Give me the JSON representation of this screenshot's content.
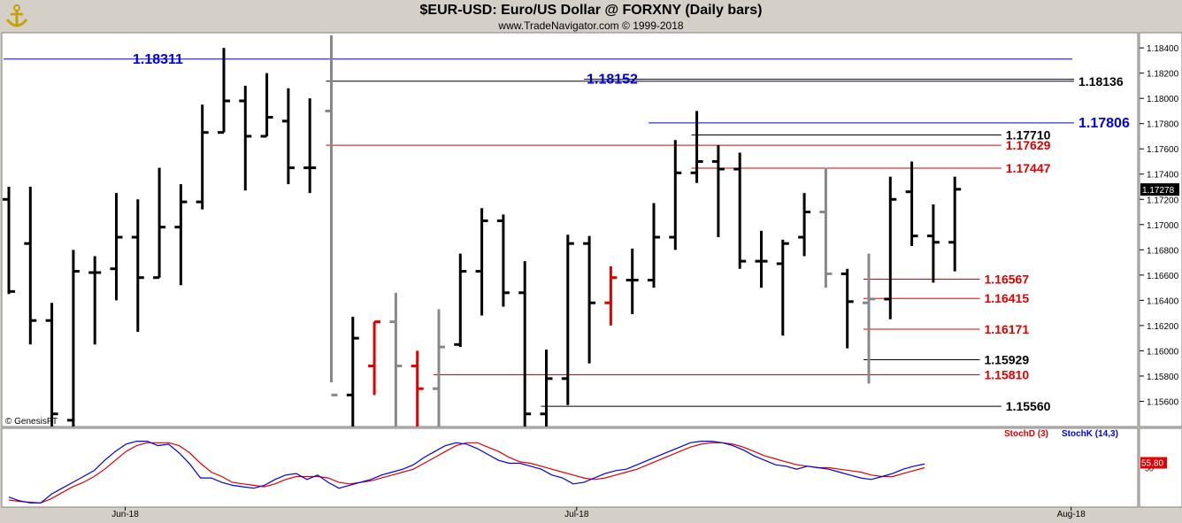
{
  "header": {
    "title": "$EUR-USD:  Euro/US Dollar @ FORXNY  (Daily bars)",
    "subtitle": "www.TradeNavigator.com © 1999-2018"
  },
  "copyright": "© GenesisFT",
  "colors": {
    "background": "#ffffff",
    "frame": "#d4d0c8",
    "bar_up": "#000000",
    "bar_down": "#e00000",
    "bar_neutral": "#888888",
    "level_blue": "#0000e0",
    "level_red": "#e00000",
    "level_black": "#000000",
    "stoch_d": "#e00000",
    "stoch_k": "#0000e0"
  },
  "chart_data": {
    "type": "ohlc-bar",
    "price_axis": {
      "ylim": [
        1.154,
        1.1852
      ],
      "ticks": [
        "1.18400",
        "1.18200",
        "1.18000",
        "1.17800",
        "1.17600",
        "1.17400",
        "1.17200",
        "1.17000",
        "1.16800",
        "1.16600",
        "1.16400",
        "1.16200",
        "1.16000",
        "1.15800",
        "1.15600"
      ],
      "last_price_label": "1.17278",
      "last_price": 1.17278
    },
    "x_axis": {
      "labels": [
        {
          "text": "Jun-18",
          "bar": 5
        },
        {
          "text": "Jul-18",
          "bar": 26
        },
        {
          "text": "Aug-18",
          "bar": 49
        }
      ],
      "total_slots": 52
    },
    "bars": [
      {
        "h": 1.173,
        "l": 1.1645,
        "o": 1.172,
        "c": 1.1647,
        "col": "black"
      },
      {
        "h": 1.173,
        "l": 1.1605,
        "o": 1.1685,
        "c": 1.1624,
        "col": "black"
      },
      {
        "h": 1.1638,
        "l": 1.154,
        "o": 1.1624,
        "c": 1.155,
        "col": "black"
      },
      {
        "h": 1.168,
        "l": 1.153,
        "o": 1.1545,
        "c": 1.1663,
        "col": "black"
      },
      {
        "h": 1.1675,
        "l": 1.1605,
        "o": 1.1662,
        "c": 1.1662,
        "col": "black"
      },
      {
        "h": 1.1725,
        "l": 1.164,
        "o": 1.1665,
        "c": 1.169,
        "col": "black"
      },
      {
        "h": 1.172,
        "l": 1.1615,
        "o": 1.169,
        "c": 1.1658,
        "col": "black"
      },
      {
        "h": 1.1745,
        "l": 1.1658,
        "o": 1.1658,
        "c": 1.1698,
        "col": "black"
      },
      {
        "h": 1.1732,
        "l": 1.1652,
        "o": 1.1698,
        "c": 1.1718,
        "col": "black"
      },
      {
        "h": 1.1795,
        "l": 1.1712,
        "o": 1.1718,
        "c": 1.1773,
        "col": "black"
      },
      {
        "h": 1.184,
        "l": 1.1773,
        "o": 1.1773,
        "c": 1.1798,
        "col": "black"
      },
      {
        "h": 1.181,
        "l": 1.1727,
        "o": 1.1798,
        "c": 1.177,
        "col": "black"
      },
      {
        "h": 1.182,
        "l": 1.177,
        "o": 1.177,
        "c": 1.1785,
        "col": "black"
      },
      {
        "h": 1.1808,
        "l": 1.1732,
        "o": 1.1782,
        "c": 1.1745,
        "col": "black"
      },
      {
        "h": 1.18,
        "l": 1.1725,
        "o": 1.1745,
        "c": 1.1745,
        "col": "black"
      },
      {
        "h": 1.185,
        "l": 1.1575,
        "o": 1.179,
        "c": 1.1565,
        "col": "gray"
      },
      {
        "h": 1.1627,
        "l": 1.154,
        "o": 1.1565,
        "c": 1.161,
        "col": "black"
      },
      {
        "h": 1.1623,
        "l": 1.1565,
        "o": 1.1588,
        "c": 1.1623,
        "col": "red"
      },
      {
        "h": 1.1646,
        "l": 1.154,
        "o": 1.1623,
        "c": 1.1588,
        "col": "gray"
      },
      {
        "h": 1.16,
        "l": 1.154,
        "o": 1.1588,
        "c": 1.157,
        "col": "red"
      },
      {
        "h": 1.1633,
        "l": 1.154,
        "o": 1.157,
        "c": 1.1603,
        "col": "gray"
      },
      {
        "h": 1.1677,
        "l": 1.1603,
        "o": 1.1605,
        "c": 1.1663,
        "col": "black"
      },
      {
        "h": 1.1713,
        "l": 1.1628,
        "o": 1.1663,
        "c": 1.1703,
        "col": "black"
      },
      {
        "h": 1.1708,
        "l": 1.1635,
        "o": 1.1703,
        "c": 1.1646,
        "col": "black"
      },
      {
        "h": 1.1671,
        "l": 1.154,
        "o": 1.1646,
        "c": 1.155,
        "col": "black"
      },
      {
        "h": 1.1601,
        "l": 1.154,
        "o": 1.155,
        "c": 1.1578,
        "col": "black"
      },
      {
        "h": 1.1692,
        "l": 1.1557,
        "o": 1.1578,
        "c": 1.1685,
        "col": "black"
      },
      {
        "h": 1.1691,
        "l": 1.159,
        "o": 1.1685,
        "c": 1.1638,
        "col": "black"
      },
      {
        "h": 1.1667,
        "l": 1.162,
        "o": 1.1638,
        "c": 1.1658,
        "col": "red"
      },
      {
        "h": 1.1681,
        "l": 1.1629,
        "o": 1.1656,
        "c": 1.1656,
        "col": "black"
      },
      {
        "h": 1.1717,
        "l": 1.165,
        "o": 1.1656,
        "c": 1.169,
        "col": "black"
      },
      {
        "h": 1.1767,
        "l": 1.168,
        "o": 1.169,
        "c": 1.1741,
        "col": "black"
      },
      {
        "h": 1.179,
        "l": 1.1733,
        "o": 1.1741,
        "c": 1.175,
        "col": "black"
      },
      {
        "h": 1.1763,
        "l": 1.169,
        "o": 1.175,
        "c": 1.1744,
        "col": "black"
      },
      {
        "h": 1.1757,
        "l": 1.1665,
        "o": 1.1744,
        "c": 1.1671,
        "col": "black"
      },
      {
        "h": 1.1695,
        "l": 1.165,
        "o": 1.1671,
        "c": 1.1671,
        "col": "black"
      },
      {
        "h": 1.1688,
        "l": 1.1612,
        "o": 1.1669,
        "c": 1.1685,
        "col": "black"
      },
      {
        "h": 1.1725,
        "l": 1.1675,
        "o": 1.169,
        "c": 1.171,
        "col": "black"
      },
      {
        "h": 1.1745,
        "l": 1.165,
        "o": 1.171,
        "c": 1.1661,
        "col": "gray"
      },
      {
        "h": 1.1665,
        "l": 1.1602,
        "o": 1.1661,
        "c": 1.1639,
        "col": "black"
      },
      {
        "h": 1.1677,
        "l": 1.1574,
        "o": 1.1638,
        "c": 1.1641,
        "col": "gray"
      },
      {
        "h": 1.1738,
        "l": 1.1625,
        "o": 1.1641,
        "c": 1.172,
        "col": "black"
      },
      {
        "h": 1.175,
        "l": 1.1683,
        "o": 1.1726,
        "c": 1.1691,
        "col": "black"
      },
      {
        "h": 1.1716,
        "l": 1.1654,
        "o": 1.1691,
        "c": 1.1686,
        "col": "black"
      },
      {
        "h": 1.1738,
        "l": 1.1663,
        "o": 1.1686,
        "c": 1.1728,
        "col": "black"
      }
    ],
    "levels": [
      {
        "price": 1.18311,
        "label": "1.18311",
        "color": "blue",
        "from": 0,
        "to": 51,
        "label_side": "left"
      },
      {
        "price": 1.18152,
        "label": "1.18152",
        "color": "blue",
        "from": 27,
        "to": 51,
        "label_side": "mid"
      },
      {
        "price": 1.18136,
        "label": "1.18136",
        "color": "black",
        "from": 15,
        "to": 51,
        "label_side": "right"
      },
      {
        "price": 1.17806,
        "label": "1.17806",
        "color": "blue",
        "from": 30,
        "to": 51,
        "label_side": "right"
      },
      {
        "price": 1.1771,
        "label": "1.17710",
        "color": "black",
        "from": 32,
        "to": 46,
        "label_side": "right"
      },
      {
        "price": 1.17629,
        "label": "1.17629",
        "color": "red",
        "from": 15,
        "to": 46,
        "label_side": "right"
      },
      {
        "price": 1.17447,
        "label": "1.17447",
        "color": "red",
        "from": 32,
        "to": 46,
        "label_side": "right"
      },
      {
        "price": 1.16567,
        "label": "1.16567",
        "color": "red",
        "from": 40,
        "to": 45,
        "label_side": "right"
      },
      {
        "price": 1.16415,
        "label": "1.16415",
        "color": "red",
        "from": 40,
        "to": 45,
        "label_side": "right"
      },
      {
        "price": 1.16171,
        "label": "1.16171",
        "color": "red",
        "from": 40,
        "to": 45,
        "label_side": "right"
      },
      {
        "price": 1.15929,
        "label": "1.15929",
        "color": "black",
        "from": 40,
        "to": 45,
        "label_side": "right"
      },
      {
        "price": 1.1581,
        "label": "1.15810",
        "color": "red",
        "from": 20,
        "to": 45,
        "label_side": "right"
      },
      {
        "price": 1.1556,
        "label": "1.15560",
        "color": "black",
        "from": 25,
        "to": 46,
        "label_side": "right"
      }
    ],
    "stochastic": {
      "ylim": [
        0,
        100
      ],
      "tick_label": "50",
      "last_value_label": "55.80",
      "legend": [
        {
          "name": "StochD (3)",
          "color": "red"
        },
        {
          "name": "StochK (14,3)",
          "color": "blue"
        }
      ],
      "k": [
        10,
        5,
        2,
        2,
        14,
        22,
        30,
        38,
        46,
        60,
        72,
        82,
        86,
        86,
        80,
        82,
        70,
        55,
        36,
        36,
        30,
        26,
        24,
        22,
        26,
        34,
        40,
        42,
        34,
        40,
        30,
        22,
        26,
        30,
        34,
        40,
        44,
        48,
        54,
        64,
        72,
        80,
        84,
        82,
        76,
        68,
        60,
        56,
        56,
        52,
        48,
        40,
        36,
        28,
        30,
        36,
        42,
        46,
        48,
        54,
        60,
        66,
        72,
        78,
        84,
        86,
        86,
        84,
        80,
        74,
        66,
        60,
        54,
        52,
        48,
        52,
        50,
        48,
        44,
        40,
        36,
        34,
        38,
        42,
        48,
        52,
        55
      ],
      "d": [
        6,
        4,
        3,
        2,
        8,
        16,
        24,
        30,
        38,
        48,
        60,
        72,
        80,
        84,
        84,
        84,
        80,
        70,
        56,
        44,
        38,
        30,
        28,
        26,
        24,
        28,
        34,
        38,
        38,
        38,
        36,
        30,
        28,
        30,
        32,
        36,
        40,
        44,
        48,
        56,
        64,
        72,
        80,
        84,
        84,
        78,
        72,
        64,
        58,
        56,
        52,
        48,
        44,
        40,
        36,
        34,
        36,
        40,
        44,
        48,
        54,
        60,
        66,
        72,
        78,
        82,
        84,
        84,
        82,
        78,
        72,
        66,
        62,
        58,
        54,
        52,
        50,
        50,
        48,
        46,
        44,
        40,
        38,
        38,
        42,
        46,
        50
      ]
    }
  }
}
